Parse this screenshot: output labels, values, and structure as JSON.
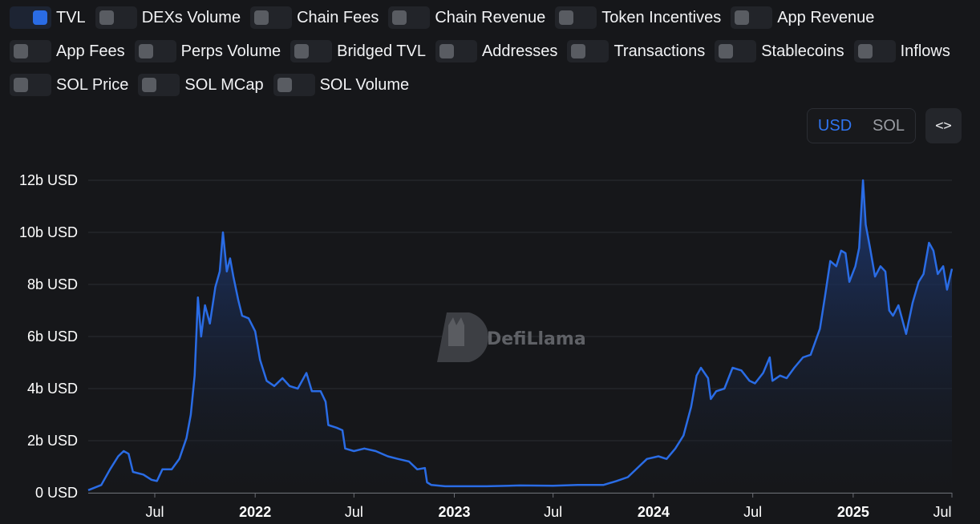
{
  "toggles": [
    {
      "label": "TVL",
      "on": true
    },
    {
      "label": "DEXs Volume",
      "on": false
    },
    {
      "label": "Chain Fees",
      "on": false
    },
    {
      "label": "Chain Revenue",
      "on": false
    },
    {
      "label": "Token Incentives",
      "on": false
    },
    {
      "label": "App Revenue",
      "on": false
    },
    {
      "label": "App Fees",
      "on": false
    },
    {
      "label": "Perps Volume",
      "on": false
    },
    {
      "label": "Bridged TVL",
      "on": false
    },
    {
      "label": "Addresses",
      "on": false
    },
    {
      "label": "Transactions",
      "on": false
    },
    {
      "label": "Stablecoins",
      "on": false
    },
    {
      "label": "Inflows",
      "on": false
    },
    {
      "label": "SOL Price",
      "on": false
    },
    {
      "label": "SOL MCap",
      "on": false
    },
    {
      "label": "SOL Volume",
      "on": false
    }
  ],
  "currency": {
    "options": [
      "USD",
      "SOL"
    ],
    "selected": "USD"
  },
  "embed_label": "<>",
  "watermark": {
    "text": "DefiLlama"
  },
  "colors": {
    "line": "#2a6ce5",
    "grid": "#2a2c31",
    "background": "#16171a"
  },
  "chart_data": {
    "type": "area",
    "title": "",
    "xlabel": "",
    "ylabel": "",
    "grid": true,
    "ylim": [
      0,
      12
    ],
    "y_unit": "b USD",
    "y_ticks": [
      {
        "value": 0,
        "label": "0 USD"
      },
      {
        "value": 2,
        "label": "2b USD"
      },
      {
        "value": 4,
        "label": "4b USD"
      },
      {
        "value": 6,
        "label": "6b USD"
      },
      {
        "value": 8,
        "label": "8b USD"
      },
      {
        "value": 10,
        "label": "10b USD"
      },
      {
        "value": 12,
        "label": "12b USD"
      }
    ],
    "xlim": [
      "2021-03-01",
      "2025-07-01"
    ],
    "x_ticks": [
      {
        "date": "2021-07-01",
        "label": "Jul",
        "bold": false
      },
      {
        "date": "2022-01-01",
        "label": "2022",
        "bold": true
      },
      {
        "date": "2022-07-01",
        "label": "Jul",
        "bold": false
      },
      {
        "date": "2023-01-01",
        "label": "2023",
        "bold": true
      },
      {
        "date": "2023-07-01",
        "label": "Jul",
        "bold": false
      },
      {
        "date": "2024-01-01",
        "label": "2024",
        "bold": true
      },
      {
        "date": "2024-07-01",
        "label": "Jul",
        "bold": false
      },
      {
        "date": "2025-01-01",
        "label": "2025",
        "bold": true
      },
      {
        "date": "2025-07-01",
        "label": "Jul",
        "bold": false
      }
    ],
    "series": [
      {
        "name": "TVL",
        "points": [
          [
            "2021-03-01",
            0.1
          ],
          [
            "2021-03-25",
            0.3
          ],
          [
            "2021-04-10",
            0.9
          ],
          [
            "2021-04-25",
            1.4
          ],
          [
            "2021-05-05",
            1.6
          ],
          [
            "2021-05-14",
            1.5
          ],
          [
            "2021-05-22",
            0.8
          ],
          [
            "2021-06-10",
            0.7
          ],
          [
            "2021-06-25",
            0.5
          ],
          [
            "2021-07-05",
            0.45
          ],
          [
            "2021-07-15",
            0.9
          ],
          [
            "2021-08-01",
            0.9
          ],
          [
            "2021-08-15",
            1.3
          ],
          [
            "2021-08-28",
            2.1
          ],
          [
            "2021-09-05",
            3.0
          ],
          [
            "2021-09-12",
            4.5
          ],
          [
            "2021-09-18",
            7.5
          ],
          [
            "2021-09-24",
            6.0
          ],
          [
            "2021-10-01",
            7.2
          ],
          [
            "2021-10-10",
            6.5
          ],
          [
            "2021-10-20",
            7.9
          ],
          [
            "2021-10-28",
            8.5
          ],
          [
            "2021-11-03",
            10.0
          ],
          [
            "2021-11-10",
            8.5
          ],
          [
            "2021-11-16",
            9.0
          ],
          [
            "2021-11-22",
            8.3
          ],
          [
            "2021-12-01",
            7.4
          ],
          [
            "2021-12-08",
            6.8
          ],
          [
            "2021-12-20",
            6.7
          ],
          [
            "2022-01-01",
            6.2
          ],
          [
            "2022-01-10",
            5.1
          ],
          [
            "2022-01-22",
            4.3
          ],
          [
            "2022-02-05",
            4.1
          ],
          [
            "2022-02-20",
            4.4
          ],
          [
            "2022-03-05",
            4.1
          ],
          [
            "2022-03-20",
            4.0
          ],
          [
            "2022-04-05",
            4.6
          ],
          [
            "2022-04-15",
            3.9
          ],
          [
            "2022-05-01",
            3.9
          ],
          [
            "2022-05-10",
            3.5
          ],
          [
            "2022-05-15",
            2.6
          ],
          [
            "2022-05-30",
            2.5
          ],
          [
            "2022-06-10",
            2.4
          ],
          [
            "2022-06-15",
            1.7
          ],
          [
            "2022-07-01",
            1.6
          ],
          [
            "2022-07-20",
            1.7
          ],
          [
            "2022-08-10",
            1.6
          ],
          [
            "2022-09-01",
            1.4
          ],
          [
            "2022-09-20",
            1.3
          ],
          [
            "2022-10-10",
            1.2
          ],
          [
            "2022-10-25",
            0.9
          ],
          [
            "2022-11-08",
            0.95
          ],
          [
            "2022-11-12",
            0.4
          ],
          [
            "2022-11-20",
            0.3
          ],
          [
            "2022-12-15",
            0.25
          ],
          [
            "2023-01-10",
            0.25
          ],
          [
            "2023-03-01",
            0.25
          ],
          [
            "2023-05-01",
            0.28
          ],
          [
            "2023-07-01",
            0.27
          ],
          [
            "2023-08-15",
            0.3
          ],
          [
            "2023-10-01",
            0.3
          ],
          [
            "2023-10-25",
            0.45
          ],
          [
            "2023-11-15",
            0.6
          ],
          [
            "2023-12-05",
            1.0
          ],
          [
            "2023-12-20",
            1.3
          ],
          [
            "2024-01-10",
            1.4
          ],
          [
            "2024-01-25",
            1.3
          ],
          [
            "2024-02-10",
            1.7
          ],
          [
            "2024-02-25",
            2.2
          ],
          [
            "2024-03-10",
            3.3
          ],
          [
            "2024-03-20",
            4.5
          ],
          [
            "2024-03-28",
            4.8
          ],
          [
            "2024-04-10",
            4.4
          ],
          [
            "2024-04-15",
            3.6
          ],
          [
            "2024-04-25",
            3.9
          ],
          [
            "2024-05-10",
            4.0
          ],
          [
            "2024-05-25",
            4.8
          ],
          [
            "2024-06-10",
            4.7
          ],
          [
            "2024-06-25",
            4.3
          ],
          [
            "2024-07-05",
            4.2
          ],
          [
            "2024-07-20",
            4.6
          ],
          [
            "2024-08-01",
            5.2
          ],
          [
            "2024-08-06",
            4.3
          ],
          [
            "2024-08-20",
            4.5
          ],
          [
            "2024-09-01",
            4.4
          ],
          [
            "2024-09-15",
            4.8
          ],
          [
            "2024-10-01",
            5.2
          ],
          [
            "2024-10-15",
            5.3
          ],
          [
            "2024-11-01",
            6.3
          ],
          [
            "2024-11-10",
            7.5
          ],
          [
            "2024-11-20",
            8.9
          ],
          [
            "2024-12-01",
            8.7
          ],
          [
            "2024-12-10",
            9.3
          ],
          [
            "2024-12-18",
            9.2
          ],
          [
            "2024-12-25",
            8.1
          ],
          [
            "2025-01-05",
            8.7
          ],
          [
            "2025-01-12",
            9.4
          ],
          [
            "2025-01-19",
            12.0
          ],
          [
            "2025-01-24",
            10.3
          ],
          [
            "2025-02-01",
            9.4
          ],
          [
            "2025-02-10",
            8.3
          ],
          [
            "2025-02-20",
            8.7
          ],
          [
            "2025-03-01",
            8.5
          ],
          [
            "2025-03-08",
            7.0
          ],
          [
            "2025-03-15",
            6.8
          ],
          [
            "2025-03-25",
            7.2
          ],
          [
            "2025-04-08",
            6.1
          ],
          [
            "2025-04-20",
            7.3
          ],
          [
            "2025-05-01",
            8.1
          ],
          [
            "2025-05-10",
            8.4
          ],
          [
            "2025-05-20",
            9.6
          ],
          [
            "2025-05-28",
            9.3
          ],
          [
            "2025-06-05",
            8.4
          ],
          [
            "2025-06-15",
            8.7
          ],
          [
            "2025-06-22",
            7.8
          ],
          [
            "2025-07-01",
            8.6
          ]
        ]
      }
    ]
  }
}
